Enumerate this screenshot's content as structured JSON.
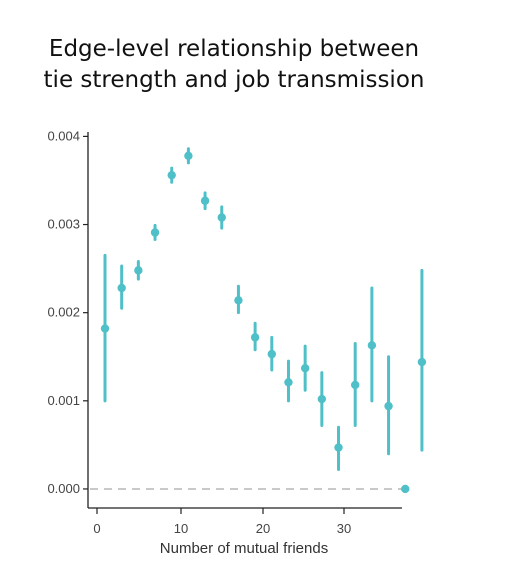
{
  "chart_data": {
    "type": "scatter",
    "title_lines": [
      "Edge-level relationship between",
      "tie strength and job transmission"
    ],
    "xlabel": "Number of mutual friends",
    "ylabel": "",
    "xlim": [
      -1.5,
      36.5
    ],
    "ylim": [
      -8e-05,
      0.00405
    ],
    "x_ticks": [
      0,
      10,
      20,
      30
    ],
    "x_tick_labels": [
      "0",
      "10",
      "20",
      "30"
    ],
    "y_ticks": [
      0.0,
      0.001,
      0.002,
      0.003,
      0.004
    ],
    "y_tick_labels": [
      "0.000",
      "0.001",
      "0.002",
      "0.003",
      "0.004"
    ],
    "reference_line": {
      "y": 0.0,
      "style": "dashed"
    },
    "grid": false,
    "legend": "none",
    "color": "#4fbfc8",
    "points": [
      {
        "x": 1,
        "y": 0.00182,
        "lower": 0.001,
        "upper": 0.00265
      },
      {
        "x": 3,
        "y": 0.00228,
        "lower": 0.00205,
        "upper": 0.00253
      },
      {
        "x": 5,
        "y": 0.00248,
        "lower": 0.00238,
        "upper": 0.00258
      },
      {
        "x": 7,
        "y": 0.00291,
        "lower": 0.00283,
        "upper": 0.00299
      },
      {
        "x": 9,
        "y": 0.00356,
        "lower": 0.00348,
        "upper": 0.00364
      },
      {
        "x": 11,
        "y": 0.00378,
        "lower": 0.0037,
        "upper": 0.00386
      },
      {
        "x": 13,
        "y": 0.00327,
        "lower": 0.00318,
        "upper": 0.00336
      },
      {
        "x": 15,
        "y": 0.00308,
        "lower": 0.00296,
        "upper": 0.0032
      },
      {
        "x": 17,
        "y": 0.00214,
        "lower": 0.002,
        "upper": 0.0023
      },
      {
        "x": 19,
        "y": 0.00172,
        "lower": 0.00158,
        "upper": 0.00188
      },
      {
        "x": 21,
        "y": 0.00153,
        "lower": 0.00135,
        "upper": 0.00172
      },
      {
        "x": 23,
        "y": 0.00121,
        "lower": 0.001,
        "upper": 0.00145
      },
      {
        "x": 25,
        "y": 0.00137,
        "lower": 0.00112,
        "upper": 0.00162
      },
      {
        "x": 27,
        "y": 0.00102,
        "lower": 0.00072,
        "upper": 0.00132
      },
      {
        "x": 29,
        "y": 0.00047,
        "lower": 0.00022,
        "upper": 0.0007
      },
      {
        "x": 31,
        "y": 0.00118,
        "lower": 0.00072,
        "upper": 0.00165
      },
      {
        "x": 33,
        "y": 0.00163,
        "lower": 0.001,
        "upper": 0.00228
      },
      {
        "x": 35,
        "y": 0.00094,
        "lower": 0.0004,
        "upper": 0.0015
      },
      {
        "x": 37,
        "y": 0.0,
        "lower": 0.0,
        "upper": 0.0
      },
      {
        "x": 39,
        "y": 0.00144,
        "lower": 0.00044,
        "upper": 0.00248
      }
    ]
  }
}
